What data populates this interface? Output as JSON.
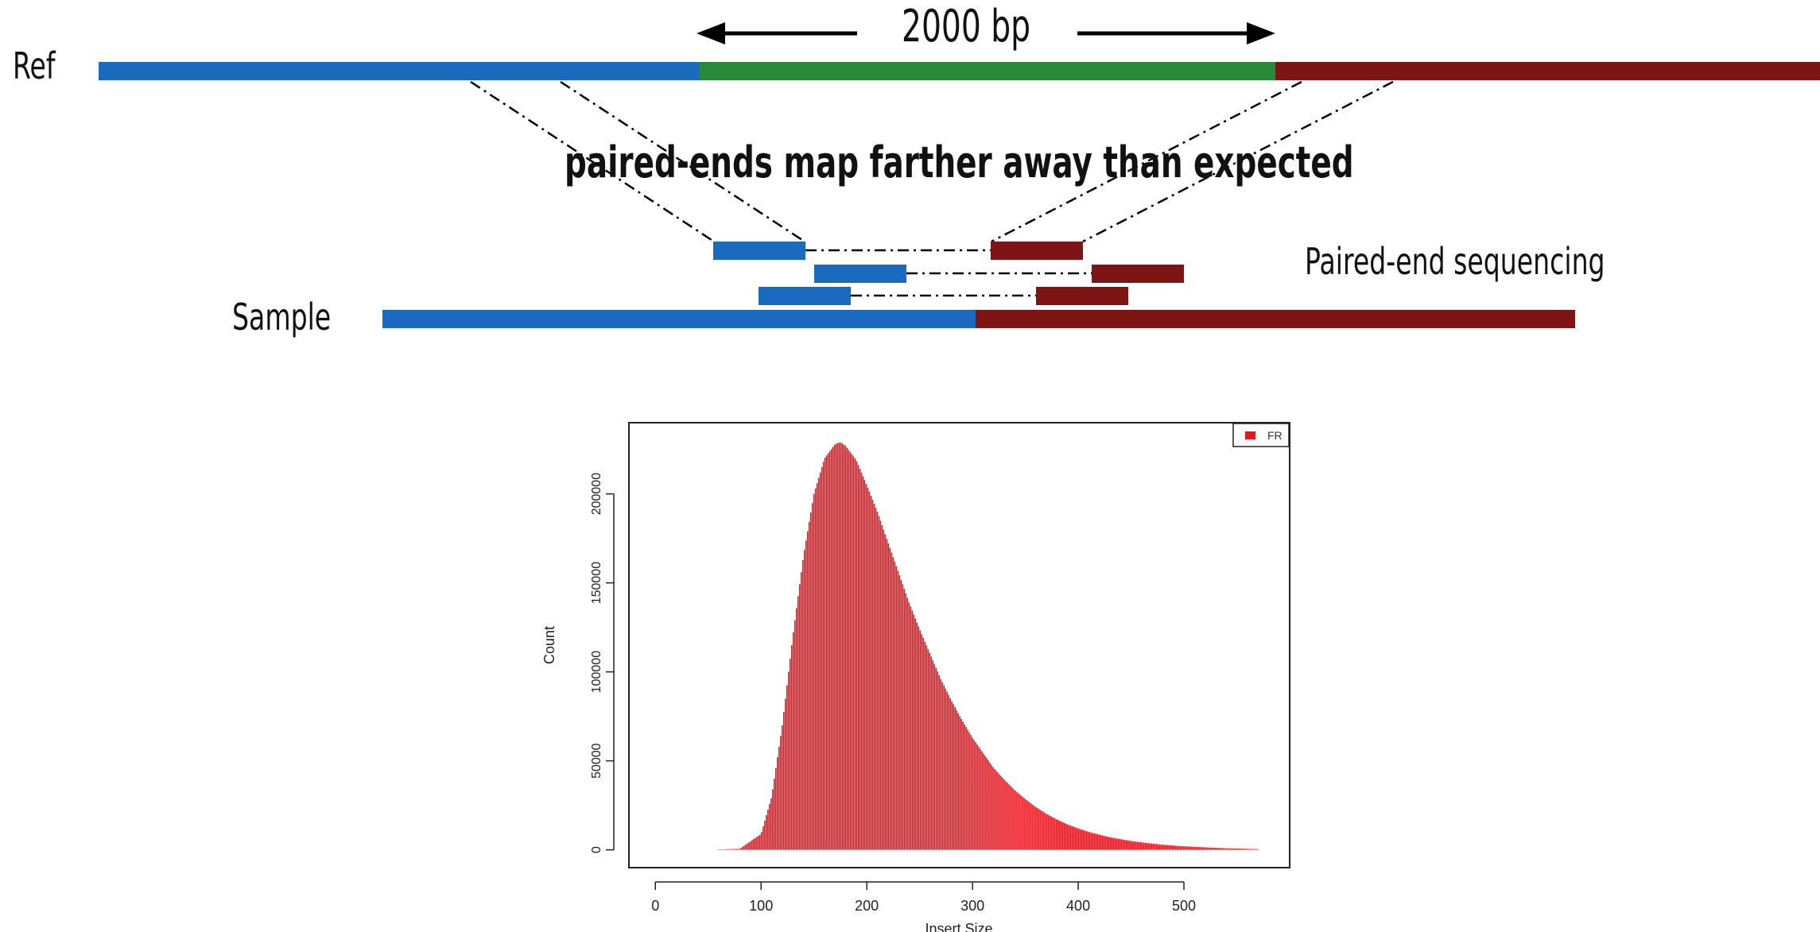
{
  "diagram": {
    "ref_label": "Ref",
    "sample_label": "Sample",
    "insert_size_label": "2000 bp",
    "headline": "paired-ends map farther away than expected",
    "method_label": "Paired-end sequencing",
    "colors": {
      "blue": "#1a6bbf",
      "green": "#268a3a",
      "darkred": "#7f1414",
      "line": "#000000"
    }
  },
  "chart_data": {
    "type": "bar",
    "xlabel": "Insert Size",
    "ylabel": "Count",
    "xlim": [
      -25,
      600
    ],
    "ylim": [
      -10000,
      240000
    ],
    "xticks": [
      0,
      100,
      200,
      300,
      400,
      500
    ],
    "yticks": [
      0,
      50000,
      100000,
      150000,
      200000
    ],
    "legend": {
      "position": "top-right",
      "entries": [
        "FR"
      ]
    },
    "grid": false,
    "series": [
      {
        "color": "#e8141e",
        "x": [
          60,
          80,
          100,
          110,
          120,
          130,
          140,
          150,
          160,
          170,
          175,
          180,
          190,
          200,
          210,
          220,
          230,
          240,
          250,
          260,
          270,
          280,
          290,
          300,
          310,
          320,
          330,
          340,
          350,
          360,
          370,
          380,
          390,
          400,
          410,
          420,
          430,
          440,
          450,
          460,
          470,
          480,
          490,
          500,
          520,
          540,
          570
        ],
        "y": [
          200,
          600,
          9000,
          30000,
          70000,
          120000,
          165000,
          200000,
          220000,
          228000,
          229000,
          227000,
          219000,
          205000,
          190000,
          173000,
          156000,
          139000,
          124000,
          110000,
          96000,
          84000,
          73000,
          63000,
          54500,
          46000,
          39500,
          33500,
          28500,
          24000,
          20200,
          17000,
          14300,
          12000,
          10100,
          8500,
          7100,
          6000,
          5000,
          4200,
          3500,
          2900,
          2400,
          2000,
          1400,
          900,
          400
        ]
      }
    ]
  }
}
